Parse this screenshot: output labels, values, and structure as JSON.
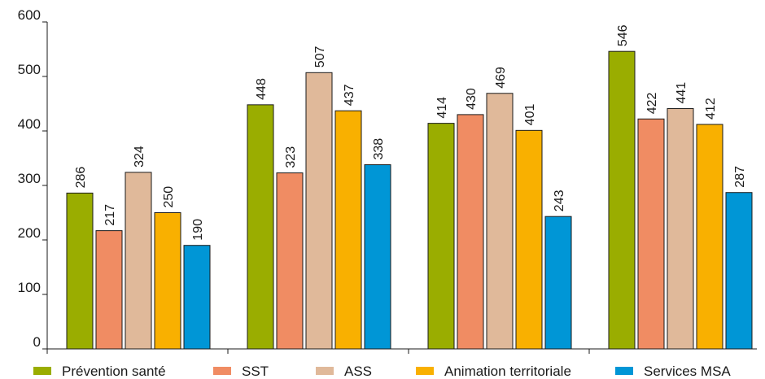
{
  "chart_data": {
    "type": "bar",
    "categories": [
      "",
      "",
      "",
      ""
    ],
    "series": [
      {
        "name": "Prévention santé",
        "color": "#9aad00",
        "values": [
          286,
          448,
          414,
          546
        ]
      },
      {
        "name": "SST",
        "color": "#f08c63",
        "values": [
          217,
          323,
          430,
          422
        ]
      },
      {
        "name": "ASS",
        "color": "#e0b99a",
        "values": [
          324,
          507,
          469,
          441
        ]
      },
      {
        "name": "Animation territoriale",
        "color": "#f9b000",
        "values": [
          250,
          437,
          401,
          412
        ]
      },
      {
        "name": "Services MSA",
        "color": "#0096d6",
        "values": [
          190,
          338,
          243,
          287
        ]
      }
    ],
    "y_ticks": [
      0,
      100,
      200,
      300,
      400,
      500,
      600
    ],
    "ylim": [
      0,
      600
    ],
    "title": "",
    "xlabel": "",
    "ylabel": "",
    "grid": false,
    "legend_position": "bottom",
    "data_labels": "vertical-above-bar"
  }
}
